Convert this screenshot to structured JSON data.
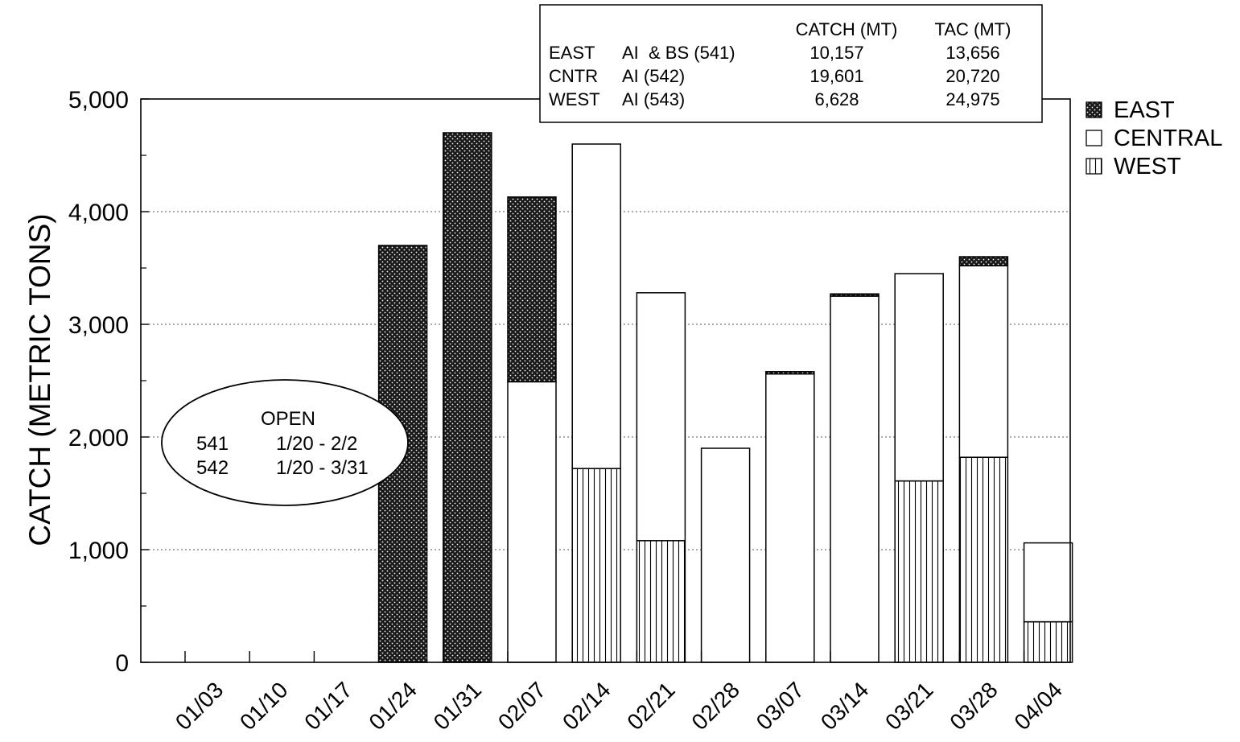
{
  "chart_data": {
    "type": "bar",
    "stacked": true,
    "ylabel": "CATCH (METRIC TONS)",
    "xlabel": "",
    "title": "",
    "ylim": [
      0,
      5000
    ],
    "yticks": [
      0,
      1000,
      2000,
      3000,
      4000,
      5000
    ],
    "ytick_labels": [
      "0",
      "1,000",
      "2,000",
      "3,000",
      "4,000",
      "5,000"
    ],
    "grid": "horizontal dotted",
    "categories": [
      "01/03",
      "01/10",
      "01/17",
      "01/24",
      "01/31",
      "02/07",
      "02/14",
      "02/21",
      "02/28",
      "03/07",
      "03/14",
      "03/21",
      "03/28",
      "04/04"
    ],
    "series": [
      {
        "name": "WEST",
        "pattern": "vertical-lines",
        "values": [
          0,
          0,
          0,
          0,
          0,
          0,
          1720,
          1080,
          0,
          0,
          0,
          1610,
          1820,
          360
        ]
      },
      {
        "name": "CENTRAL",
        "pattern": "white",
        "values": [
          0,
          0,
          0,
          0,
          0,
          2490,
          2880,
          2200,
          1900,
          2560,
          3250,
          1840,
          1700,
          700
        ]
      },
      {
        "name": "EAST",
        "pattern": "dots",
        "values": [
          0,
          0,
          0,
          3700,
          4700,
          1640,
          0,
          0,
          0,
          20,
          20,
          0,
          80,
          0
        ]
      }
    ],
    "legend": {
      "position": "right",
      "items": [
        {
          "name": "EAST",
          "pattern": "dots"
        },
        {
          "name": "CENTRAL",
          "pattern": "white"
        },
        {
          "name": "WEST",
          "pattern": "vertical-lines"
        }
      ]
    },
    "summary_table": {
      "headers": [
        "CATCH (MT)",
        "TAC (MT)"
      ],
      "rows": [
        {
          "area": "EAST",
          "label": "AI  & BS (541)",
          "catch": "10,157",
          "tac": "13,656"
        },
        {
          "area": "CNTR",
          "label": "AI (542)",
          "catch": "19,601",
          "tac": "20,720"
        },
        {
          "area": "WEST",
          "label": "AI (543)",
          "catch": "6,628",
          "tac": "24,975"
        }
      ]
    },
    "annotation": {
      "title": "OPEN",
      "rows": [
        {
          "area": "541",
          "dates": "1/20 - 2/2"
        },
        {
          "area": "542",
          "dates": "1/20 - 3/31"
        }
      ]
    }
  }
}
